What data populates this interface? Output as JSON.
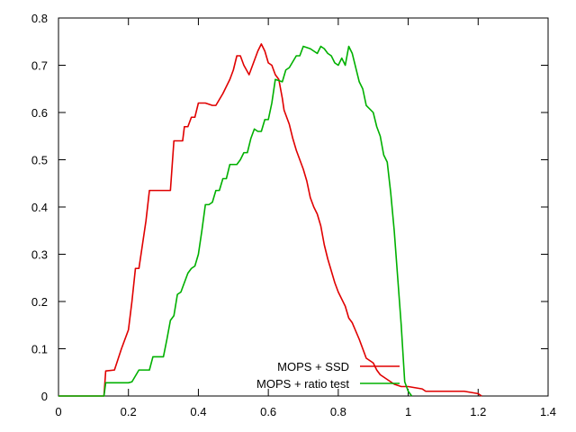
{
  "chart_data": {
    "type": "line",
    "title": "",
    "xlabel": "",
    "ylabel": "",
    "xlim": [
      0,
      1.4
    ],
    "ylim": [
      0,
      0.8
    ],
    "xticks": [
      0,
      0.2,
      0.4,
      0.6,
      0.8,
      1,
      1.2,
      1.4
    ],
    "yticks": [
      0,
      0.1,
      0.2,
      0.3,
      0.4,
      0.5,
      0.6,
      0.7,
      0.8
    ],
    "xtick_labels": [
      "0",
      "0.2",
      "0.4",
      "0.6",
      "0.8",
      "1",
      "1.2",
      "1.4"
    ],
    "ytick_labels": [
      "0",
      "0.1",
      "0.2",
      "0.3",
      "0.4",
      "0.5",
      "0.6",
      "0.7",
      "0.8"
    ],
    "grid": false,
    "legend_position": "bottom-center",
    "series": [
      {
        "name": "MOPS + SSD",
        "color": "#e00000",
        "x": [
          0,
          0.13,
          0.135,
          0.16,
          0.18,
          0.2,
          0.21,
          0.22,
          0.23,
          0.24,
          0.25,
          0.26,
          0.28,
          0.32,
          0.33,
          0.355,
          0.36,
          0.37,
          0.38,
          0.39,
          0.4,
          0.41,
          0.42,
          0.44,
          0.45,
          0.47,
          0.49,
          0.5,
          0.51,
          0.52,
          0.53,
          0.545,
          0.55,
          0.57,
          0.58,
          0.59,
          0.6,
          0.61,
          0.62,
          0.63,
          0.64,
          0.645,
          0.66,
          0.67,
          0.68,
          0.7,
          0.71,
          0.72,
          0.73,
          0.74,
          0.75,
          0.76,
          0.77,
          0.78,
          0.79,
          0.8,
          0.82,
          0.83,
          0.84,
          0.86,
          0.87,
          0.88,
          0.9,
          0.91,
          0.92,
          0.94,
          0.95,
          0.96,
          0.98,
          1.0,
          1.04,
          1.05,
          1.16,
          1.2,
          1.21
        ],
        "y": [
          0,
          0,
          0.053,
          0.055,
          0.1,
          0.14,
          0.2,
          0.27,
          0.27,
          0.32,
          0.37,
          0.435,
          0.435,
          0.435,
          0.54,
          0.54,
          0.57,
          0.57,
          0.59,
          0.59,
          0.62,
          0.62,
          0.62,
          0.615,
          0.615,
          0.64,
          0.67,
          0.69,
          0.72,
          0.72,
          0.7,
          0.68,
          0.69,
          0.73,
          0.745,
          0.73,
          0.705,
          0.7,
          0.68,
          0.67,
          0.63,
          0.605,
          0.575,
          0.545,
          0.52,
          0.48,
          0.455,
          0.42,
          0.4,
          0.385,
          0.36,
          0.32,
          0.29,
          0.265,
          0.24,
          0.22,
          0.19,
          0.165,
          0.155,
          0.12,
          0.1,
          0.08,
          0.07,
          0.055,
          0.045,
          0.035,
          0.03,
          0.025,
          0.02,
          0.02,
          0.015,
          0.01,
          0.01,
          0.005,
          0
        ]
      },
      {
        "name": "MOPS + ratio test",
        "color": "#00b000",
        "x": [
          0,
          0.13,
          0.135,
          0.2,
          0.21,
          0.23,
          0.26,
          0.27,
          0.3,
          0.31,
          0.32,
          0.33,
          0.34,
          0.35,
          0.37,
          0.38,
          0.39,
          0.4,
          0.41,
          0.42,
          0.43,
          0.44,
          0.45,
          0.46,
          0.47,
          0.48,
          0.49,
          0.5,
          0.51,
          0.52,
          0.53,
          0.54,
          0.55,
          0.56,
          0.57,
          0.58,
          0.59,
          0.6,
          0.61,
          0.62,
          0.64,
          0.65,
          0.66,
          0.68,
          0.69,
          0.7,
          0.72,
          0.73,
          0.74,
          0.75,
          0.76,
          0.77,
          0.78,
          0.79,
          0.8,
          0.81,
          0.82,
          0.83,
          0.84,
          0.86,
          0.87,
          0.88,
          0.9,
          0.91,
          0.92,
          0.93,
          0.94,
          0.95,
          0.96,
          0.97,
          0.98,
          0.99,
          1.0,
          1.01
        ],
        "y": [
          0,
          0,
          0.028,
          0.028,
          0.03,
          0.055,
          0.055,
          0.083,
          0.083,
          0.12,
          0.16,
          0.17,
          0.215,
          0.22,
          0.26,
          0.27,
          0.275,
          0.3,
          0.35,
          0.405,
          0.405,
          0.41,
          0.435,
          0.435,
          0.46,
          0.46,
          0.49,
          0.49,
          0.49,
          0.5,
          0.515,
          0.515,
          0.545,
          0.565,
          0.56,
          0.56,
          0.585,
          0.585,
          0.62,
          0.67,
          0.665,
          0.69,
          0.695,
          0.72,
          0.72,
          0.74,
          0.735,
          0.73,
          0.725,
          0.74,
          0.735,
          0.725,
          0.72,
          0.705,
          0.7,
          0.715,
          0.7,
          0.74,
          0.725,
          0.665,
          0.65,
          0.615,
          0.6,
          0.57,
          0.55,
          0.51,
          0.495,
          0.43,
          0.35,
          0.25,
          0.15,
          0.03,
          0.01,
          0
        ]
      }
    ]
  }
}
